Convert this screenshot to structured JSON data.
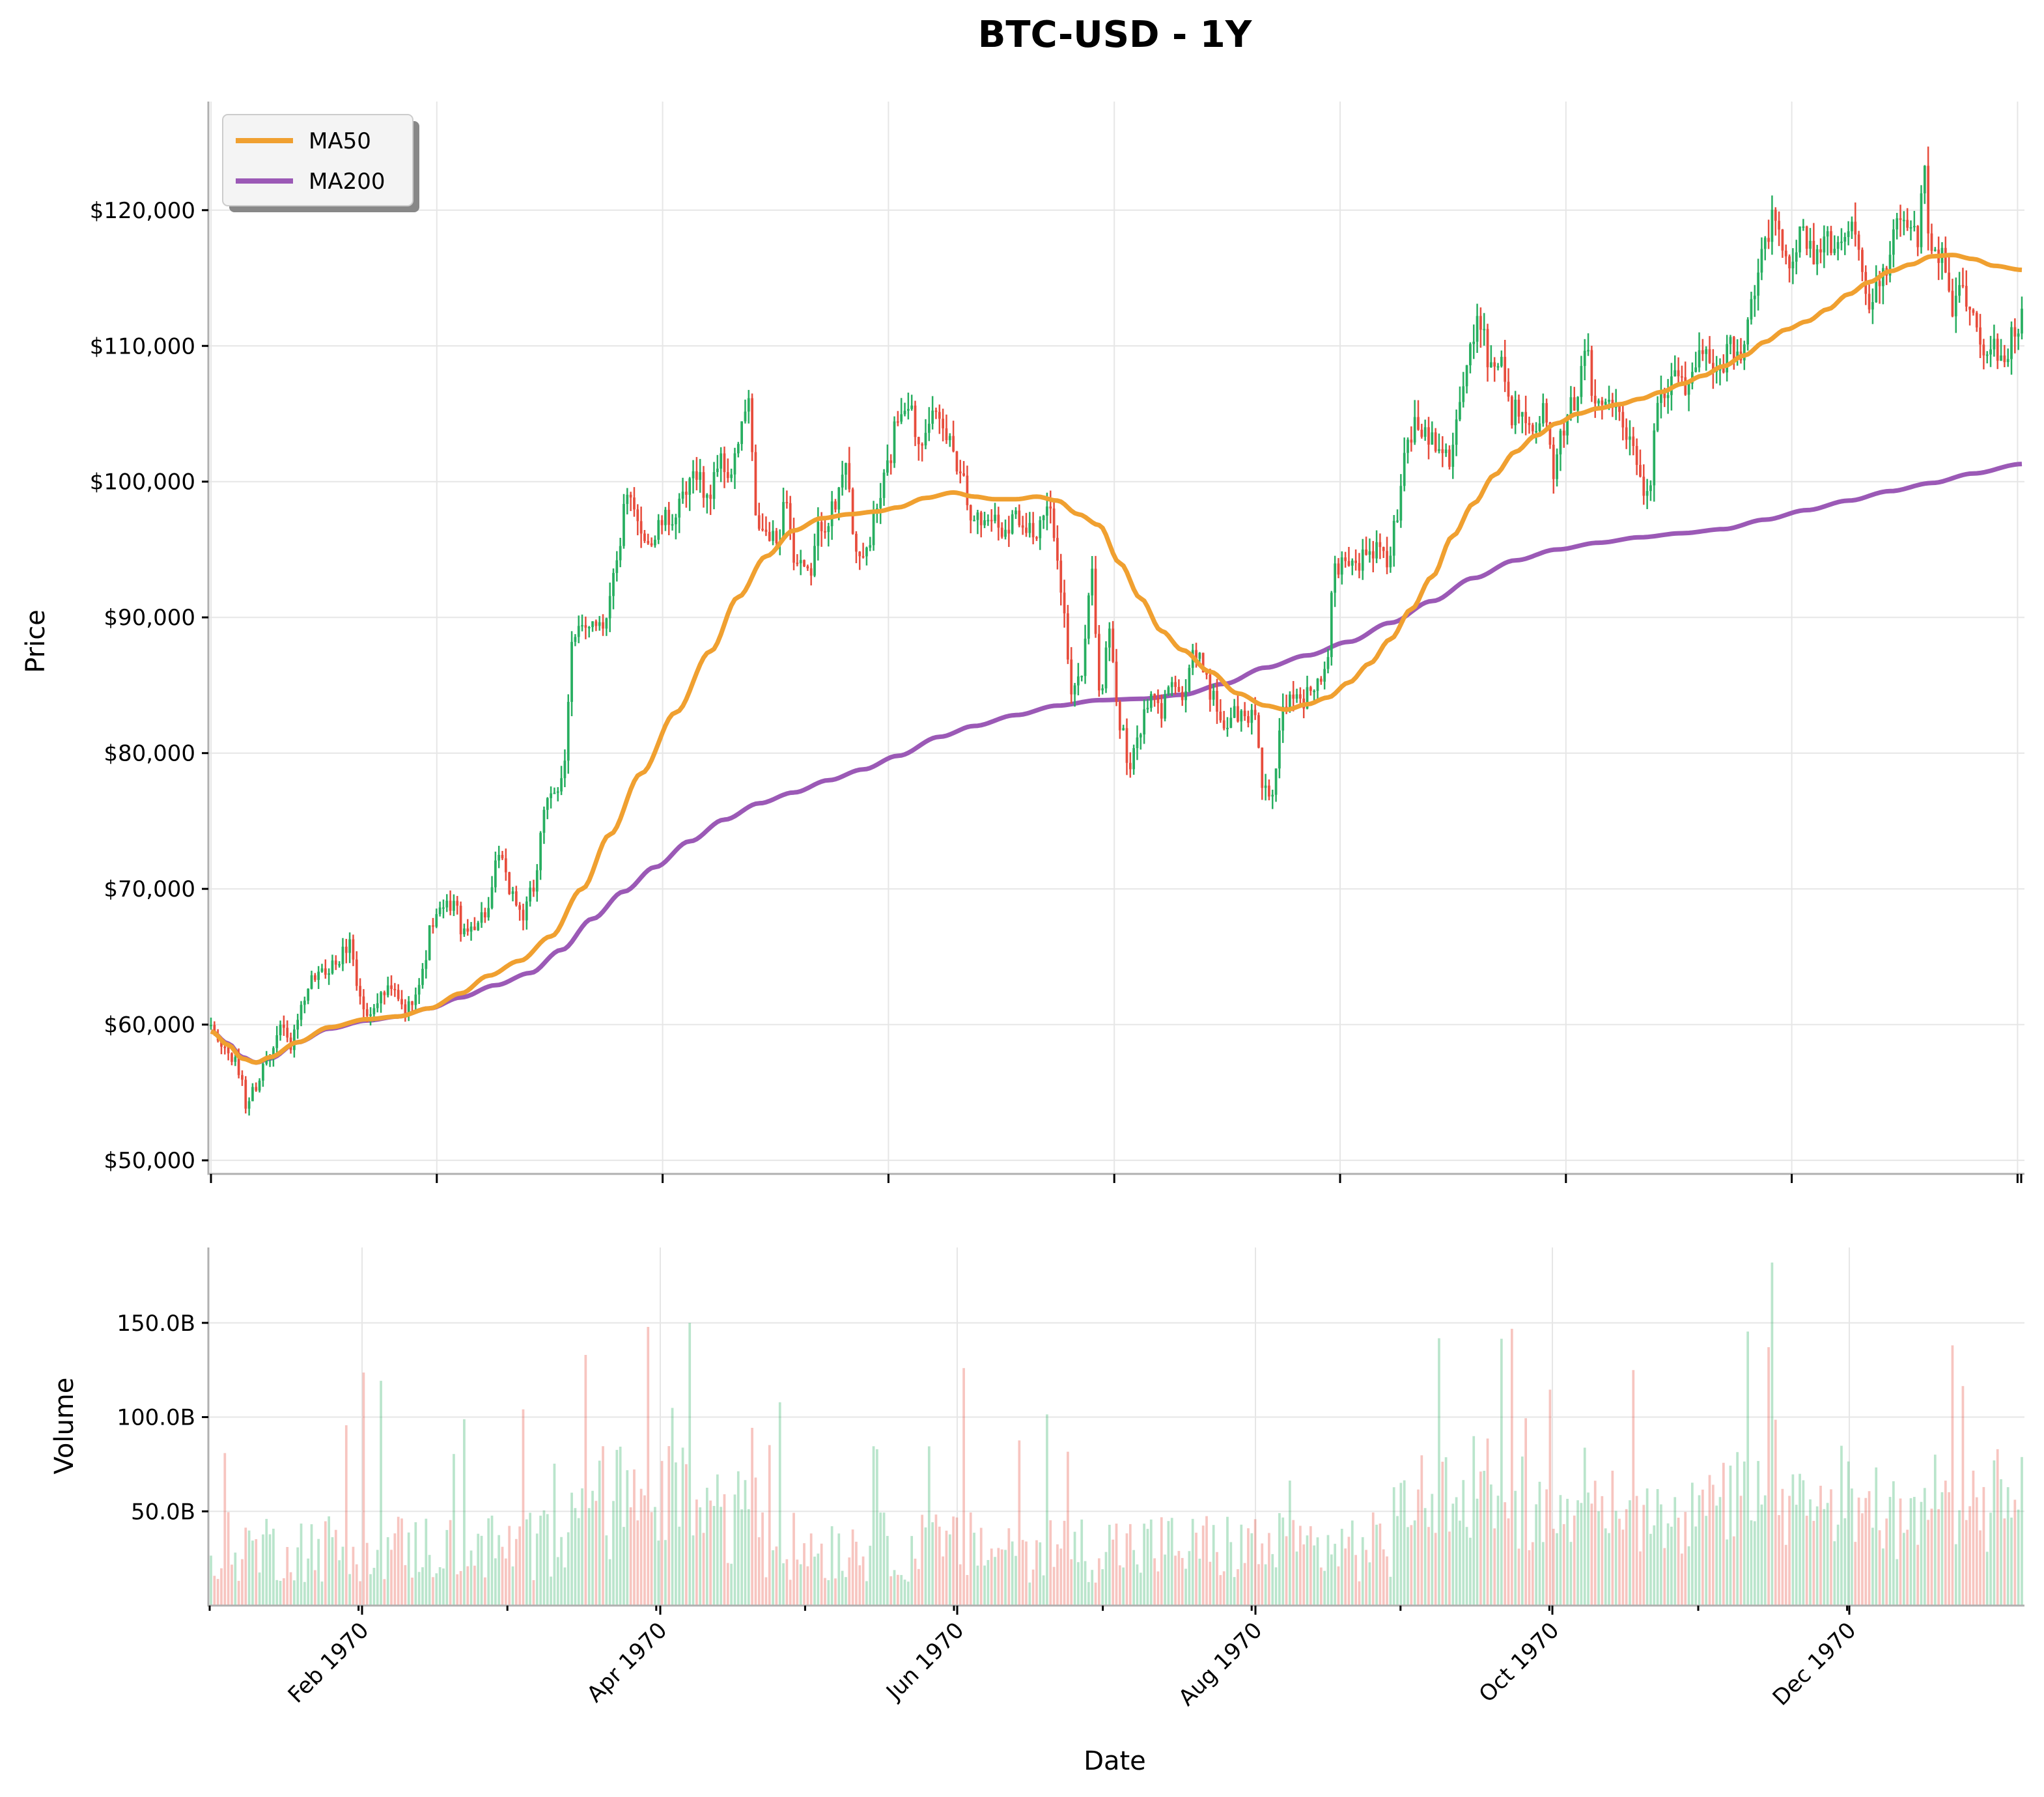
{
  "chart_data": {
    "type": "candlestick",
    "title": "BTC-USD - 1Y",
    "colors": {
      "up": "#27ae60",
      "down": "#e74c3c",
      "ma50": "#f0a030",
      "ma200": "#9b59b6"
    },
    "price_panel": {
      "ylabel": "Price",
      "ylim": [
        49000,
        128000
      ],
      "yticks": [
        50000,
        60000,
        70000,
        80000,
        90000,
        100000,
        110000,
        120000
      ],
      "ytick_labels": [
        "$50,000",
        "$60,000",
        "$70,000",
        "$80,000",
        "$90,000",
        "$100,000",
        "$110,000",
        "$120,000"
      ],
      "legend": {
        "placement": "top-left",
        "entries": [
          "MA50",
          "MA200"
        ]
      },
      "close_anchors": [
        [
          0,
          59500
        ],
        [
          3,
          58500
        ],
        [
          6,
          57500
        ],
        [
          9,
          56000
        ],
        [
          10,
          54000
        ],
        [
          13,
          55500
        ],
        [
          16,
          57500
        ],
        [
          20,
          60000
        ],
        [
          23,
          58500
        ],
        [
          26,
          61000
        ],
        [
          30,
          63500
        ],
        [
          36,
          64500
        ],
        [
          40,
          66000
        ],
        [
          43,
          62000
        ],
        [
          45,
          60500
        ],
        [
          48,
          62000
        ],
        [
          52,
          62500
        ],
        [
          56,
          61000
        ],
        [
          60,
          63000
        ],
        [
          64,
          67500
        ],
        [
          67,
          68500
        ],
        [
          70,
          69000
        ],
        [
          73,
          66500
        ],
        [
          76,
          67500
        ],
        [
          78,
          68000
        ],
        [
          80,
          68500
        ],
        [
          83,
          72500
        ],
        [
          86,
          70000
        ],
        [
          90,
          68000
        ],
        [
          93,
          70000
        ],
        [
          96,
          76000
        ],
        [
          100,
          77000
        ],
        [
          102,
          80000
        ],
        [
          104,
          88000
        ],
        [
          107,
          89000
        ],
        [
          110,
          90000
        ],
        [
          113,
          89500
        ],
        [
          116,
          93000
        ],
        [
          120,
          98500
        ],
        [
          124,
          96500
        ],
        [
          127,
          95500
        ],
        [
          130,
          97000
        ],
        [
          134,
          97500
        ],
        [
          137,
          99000
        ],
        [
          140,
          101000
        ],
        [
          143,
          98500
        ],
        [
          146,
          101500
        ],
        [
          150,
          100500
        ],
        [
          153,
          104000
        ],
        [
          155,
          106000
        ],
        [
          157,
          97000
        ],
        [
          160,
          96000
        ],
        [
          163,
          95500
        ],
        [
          166,
          99000
        ],
        [
          168,
          94000
        ],
        [
          172,
          93000
        ],
        [
          176,
          97000
        ],
        [
          180,
          98000
        ],
        [
          183,
          102000
        ],
        [
          186,
          94000
        ],
        [
          189,
          95000
        ],
        [
          192,
          98000
        ],
        [
          195,
          101000
        ],
        [
          198,
          105000
        ],
        [
          201,
          106000
        ],
        [
          204,
          103000
        ],
        [
          207,
          105000
        ],
        [
          210,
          104000
        ],
        [
          213,
          103000
        ],
        [
          216,
          101000
        ],
        [
          219,
          98000
        ],
        [
          222,
          97000
        ],
        [
          225,
          97500
        ],
        [
          228,
          96500
        ],
        [
          232,
          97500
        ],
        [
          235,
          97000
        ],
        [
          238,
          96000
        ],
        [
          241,
          98000
        ],
        [
          244,
          95000
        ],
        [
          246,
          90000
        ],
        [
          248,
          84000
        ],
        [
          251,
          86000
        ],
        [
          254,
          94000
        ],
        [
          256,
          84000
        ],
        [
          259,
          89000
        ],
        [
          262,
          82000
        ],
        [
          265,
          79000
        ],
        [
          268,
          82000
        ],
        [
          271,
          84000
        ],
        [
          274,
          83000
        ],
        [
          277,
          86000
        ],
        [
          280,
          84000
        ],
        [
          283,
          87000
        ],
        [
          286,
          86500
        ],
        [
          289,
          84000
        ],
        [
          292,
          82000
        ],
        [
          295,
          83000
        ],
        [
          298,
          82500
        ],
        [
          301,
          83000
        ],
        [
          303,
          78000
        ],
        [
          306,
          76500
        ],
        [
          309,
          83000
        ],
        [
          312,
          84500
        ],
        [
          315,
          84000
        ],
        [
          318,
          85000
        ],
        [
          321,
          85500
        ],
        [
          324,
          93500
        ],
        [
          327,
          94500
        ],
        [
          330,
          94000
        ],
        [
          333,
          94500
        ],
        [
          336,
          95000
        ],
        [
          339,
          94000
        ],
        [
          342,
          97500
        ],
        [
          345,
          103500
        ],
        [
          348,
          104000
        ],
        [
          351,
          103500
        ],
        [
          354,
          103000
        ],
        [
          357,
          102000
        ],
        [
          360,
          106000
        ],
        [
          363,
          109500
        ],
        [
          366,
          112000
        ],
        [
          369,
          108500
        ],
        [
          372,
          109000
        ],
        [
          375,
          105000
        ],
        [
          378,
          105500
        ],
        [
          381,
          104500
        ],
        [
          384,
          105000
        ],
        [
          387,
          101000
        ],
        [
          390,
          103500
        ],
        [
          393,
          106000
        ],
        [
          396,
          110000
        ],
        [
          399,
          105500
        ],
        [
          402,
          106000
        ],
        [
          405,
          106500
        ],
        [
          408,
          104000
        ],
        [
          411,
          102000
        ],
        [
          414,
          98500
        ],
        [
          417,
          106500
        ],
        [
          420,
          107000
        ],
        [
          423,
          108000
        ],
        [
          426,
          106500
        ],
        [
          429,
          109500
        ],
        [
          432,
          109000
        ],
        [
          435,
          108500
        ],
        [
          438,
          110000
        ],
        [
          441,
          108500
        ],
        [
          444,
          113000
        ],
        [
          447,
          116500
        ],
        [
          450,
          119500
        ],
        [
          453,
          117500
        ],
        [
          456,
          116500
        ],
        [
          459,
          118500
        ],
        [
          462,
          116500
        ],
        [
          465,
          118000
        ],
        [
          468,
          117000
        ],
        [
          471,
          119000
        ],
        [
          474,
          118500
        ],
        [
          477,
          113000
        ],
        [
          480,
          114000
        ],
        [
          483,
          116000
        ],
        [
          486,
          118500
        ],
        [
          489,
          119000
        ],
        [
          492,
          118000
        ],
        [
          494,
          122500
        ],
        [
          496,
          116000
        ],
        [
          499,
          117000
        ],
        [
          502,
          113000
        ],
        [
          505,
          114000
        ],
        [
          508,
          112000
        ],
        [
          511,
          109000
        ],
        [
          514,
          110000
        ],
        [
          517,
          109000
        ],
        [
          520,
          111000
        ],
        [
          522,
          112000
        ]
      ],
      "ma50_anchors": [
        [
          0,
          59500
        ],
        [
          5,
          58500
        ],
        [
          9,
          57500
        ],
        [
          13,
          57200
        ],
        [
          17,
          57600
        ],
        [
          25,
          58700
        ],
        [
          34,
          59800
        ],
        [
          45,
          60400
        ],
        [
          54,
          60600
        ],
        [
          63,
          61200
        ],
        [
          72,
          62300
        ],
        [
          80,
          63600
        ],
        [
          89,
          64700
        ],
        [
          98,
          66500
        ],
        [
          107,
          70000
        ],
        [
          115,
          74000
        ],
        [
          124,
          78500
        ],
        [
          134,
          83000
        ],
        [
          144,
          87500
        ],
        [
          152,
          91500
        ],
        [
          160,
          94500
        ],
        [
          168,
          96400
        ],
        [
          176,
          97300
        ],
        [
          184,
          97600
        ],
        [
          192,
          97800
        ],
        [
          198,
          98100
        ],
        [
          206,
          98800
        ],
        [
          214,
          99200
        ],
        [
          220,
          98900
        ],
        [
          226,
          98700
        ],
        [
          232,
          98700
        ],
        [
          238,
          98900
        ],
        [
          244,
          98600
        ],
        [
          250,
          97600
        ],
        [
          256,
          96800
        ],
        [
          262,
          94000
        ],
        [
          268,
          91400
        ],
        [
          274,
          89000
        ],
        [
          280,
          87600
        ],
        [
          288,
          86000
        ],
        [
          296,
          84400
        ],
        [
          304,
          83500
        ],
        [
          310,
          83200
        ],
        [
          316,
          83600
        ],
        [
          322,
          84100
        ],
        [
          328,
          85200
        ],
        [
          334,
          86600
        ],
        [
          340,
          88400
        ],
        [
          346,
          90600
        ],
        [
          352,
          93000
        ],
        [
          358,
          96000
        ],
        [
          364,
          98400
        ],
        [
          370,
          100500
        ],
        [
          376,
          102200
        ],
        [
          382,
          103400
        ],
        [
          388,
          104300
        ],
        [
          394,
          105000
        ],
        [
          400,
          105400
        ],
        [
          406,
          105700
        ],
        [
          412,
          106100
        ],
        [
          418,
          106600
        ],
        [
          424,
          107200
        ],
        [
          430,
          107800
        ],
        [
          436,
          108500
        ],
        [
          442,
          109300
        ],
        [
          448,
          110300
        ],
        [
          454,
          111200
        ],
        [
          460,
          111800
        ],
        [
          466,
          112700
        ],
        [
          472,
          113800
        ],
        [
          478,
          114700
        ],
        [
          484,
          115500
        ],
        [
          490,
          116000
        ],
        [
          496,
          116600
        ],
        [
          502,
          116700
        ],
        [
          508,
          116400
        ],
        [
          514,
          115900
        ],
        [
          522,
          115600
        ]
      ],
      "ma200_anchors": [
        [
          0,
          59500
        ],
        [
          5,
          58600
        ],
        [
          9,
          57600
        ],
        [
          13,
          57200
        ],
        [
          17,
          57500
        ],
        [
          25,
          58700
        ],
        [
          34,
          59700
        ],
        [
          45,
          60300
        ],
        [
          54,
          60600
        ],
        [
          63,
          61200
        ],
        [
          72,
          62000
        ],
        [
          82,
          62900
        ],
        [
          92,
          63800
        ],
        [
          101,
          65500
        ],
        [
          110,
          67800
        ],
        [
          119,
          69800
        ],
        [
          128,
          71600
        ],
        [
          138,
          73500
        ],
        [
          148,
          75100
        ],
        [
          158,
          76300
        ],
        [
          168,
          77100
        ],
        [
          178,
          78000
        ],
        [
          188,
          78800
        ],
        [
          198,
          79800
        ],
        [
          210,
          81200
        ],
        [
          220,
          82000
        ],
        [
          232,
          82800
        ],
        [
          244,
          83500
        ],
        [
          256,
          83900
        ],
        [
          268,
          84000
        ],
        [
          280,
          84300
        ],
        [
          292,
          85100
        ],
        [
          304,
          86300
        ],
        [
          316,
          87200
        ],
        [
          328,
          88200
        ],
        [
          340,
          89600
        ],
        [
          352,
          91200
        ],
        [
          364,
          92900
        ],
        [
          376,
          94200
        ],
        [
          388,
          95000
        ],
        [
          400,
          95500
        ],
        [
          412,
          95900
        ],
        [
          424,
          96200
        ],
        [
          436,
          96500
        ],
        [
          448,
          97200
        ],
        [
          460,
          97900
        ],
        [
          472,
          98600
        ],
        [
          484,
          99300
        ],
        [
          496,
          99900
        ],
        [
          508,
          100600
        ],
        [
          522,
          101300
        ]
      ]
    },
    "volume_panel": {
      "ylabel": "Volume",
      "yticks": [
        50000000000,
        100000000000,
        150000000000
      ],
      "ytick_labels": [
        "50.0B",
        "100.0B",
        "150.0B"
      ],
      "ylim": [
        0,
        190000000000
      ]
    },
    "xaxis": {
      "label": "Date",
      "tick_labels": [
        "Feb 1970",
        "Apr 1970",
        "Jun 1970",
        "Aug 1970",
        "Oct 1970",
        "Dec 1970"
      ]
    }
  }
}
